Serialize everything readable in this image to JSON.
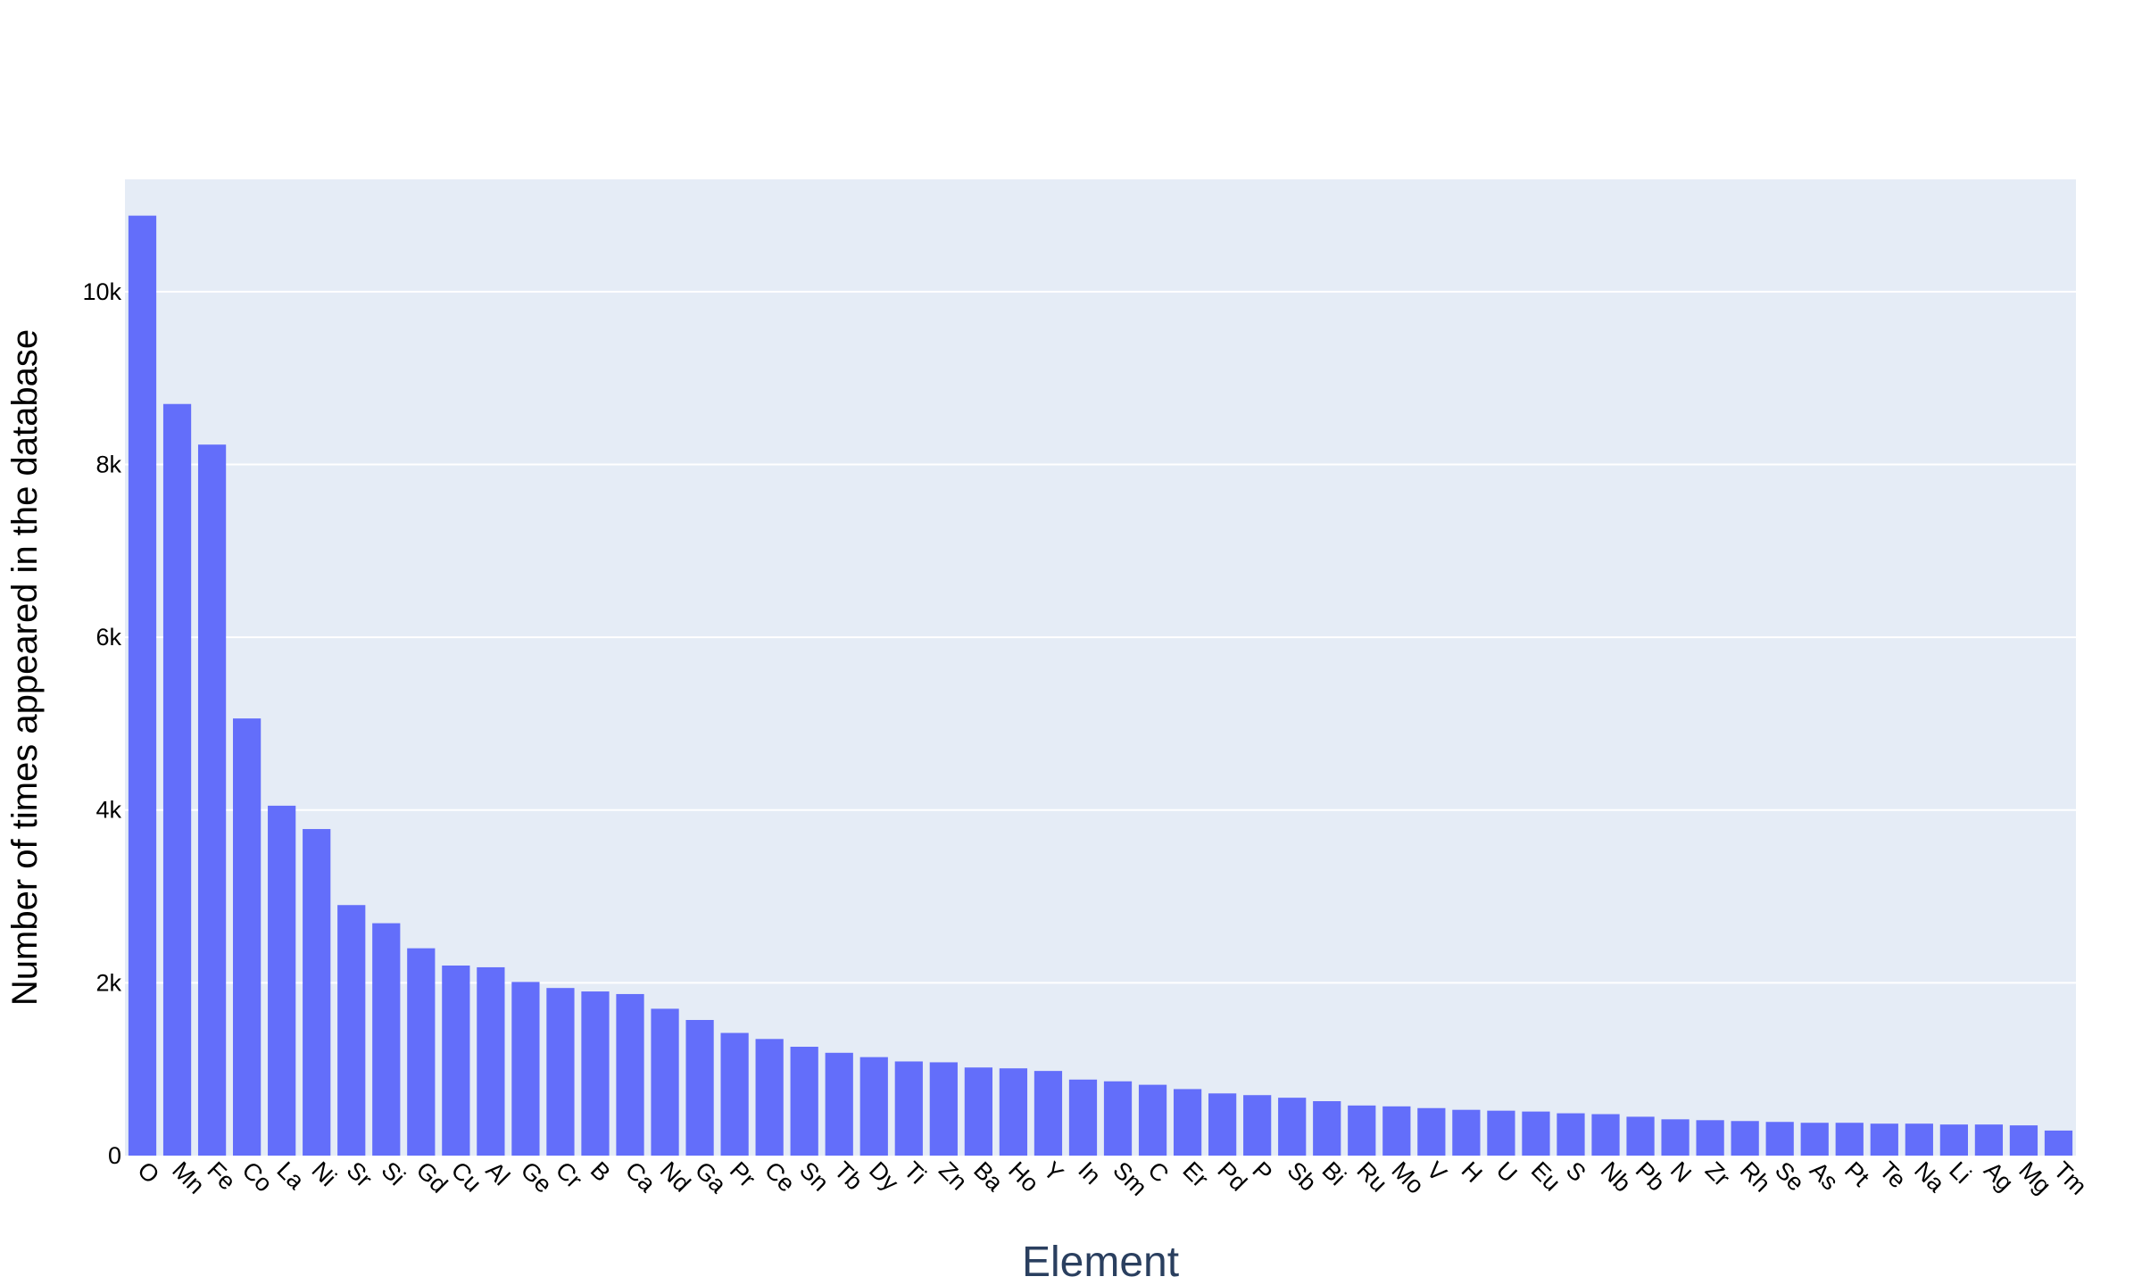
{
  "chart_data": {
    "type": "bar",
    "title": "",
    "xlabel": "Element",
    "ylabel": "Number of times appeared in the database",
    "ylim": [
      0,
      11300
    ],
    "yticks": [
      0,
      2000,
      4000,
      6000,
      8000,
      10000
    ],
    "ytick_labels": [
      "0",
      "2k",
      "4k",
      "6k",
      "8k",
      "10k"
    ],
    "grid": "horizontal",
    "colors": {
      "bar": "#636efa",
      "plot_bg": "#e5ecf6",
      "grid": "#ffffff",
      "axis_title_x": "#2a3f5f"
    },
    "categories": [
      "O",
      "Mn",
      "Fe",
      "Co",
      "La",
      "Ni",
      "Sr",
      "Si",
      "Gd",
      "Cu",
      "Al",
      "Ge",
      "Cr",
      "B",
      "Ca",
      "Nd",
      "Ga",
      "Pr",
      "Ce",
      "Sn",
      "Tb",
      "Dy",
      "Ti",
      "Zn",
      "Ba",
      "Ho",
      "Y",
      "In",
      "Sm",
      "C",
      "Er",
      "Pd",
      "P",
      "Sb",
      "Bi",
      "Ru",
      "Mo",
      "V",
      "H",
      "U",
      "Eu",
      "S",
      "Nb",
      "Pb",
      "N",
      "Zr",
      "Rh",
      "Se",
      "As",
      "Pt",
      "Te",
      "Na",
      "Li",
      "Ag",
      "Mg",
      "Tm"
    ],
    "values": [
      10880,
      8700,
      8230,
      5060,
      4050,
      3780,
      2900,
      2690,
      2400,
      2200,
      2180,
      2010,
      1940,
      1900,
      1870,
      1700,
      1570,
      1420,
      1350,
      1260,
      1190,
      1140,
      1090,
      1080,
      1020,
      1010,
      980,
      880,
      860,
      820,
      770,
      720,
      700,
      670,
      630,
      580,
      570,
      550,
      530,
      520,
      510,
      490,
      480,
      450,
      420,
      410,
      400,
      390,
      380,
      380,
      370,
      370,
      360,
      360,
      350,
      290
    ]
  }
}
